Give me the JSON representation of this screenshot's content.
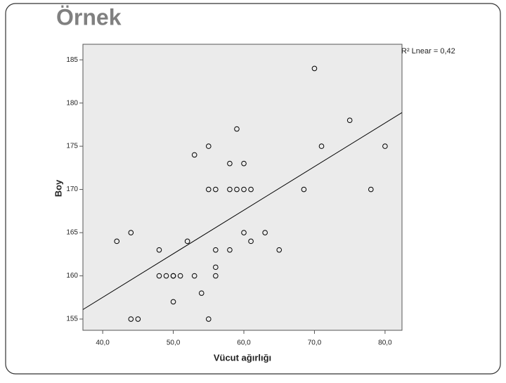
{
  "chart_data": {
    "type": "scatter",
    "title": "Örnek",
    "annotation": "R² Lnear = 0,42",
    "x_label": "Vücut ağırlığı",
    "y_label": "Boy",
    "xlim": [
      37.2,
      82.4
    ],
    "ylim": [
      153.7,
      186.8
    ],
    "xticks": [
      {
        "value": 40,
        "label": "40,0"
      },
      {
        "value": 50,
        "label": "50,0"
      },
      {
        "value": 60,
        "label": "60,0"
      },
      {
        "value": 70,
        "label": "70,0"
      },
      {
        "value": 80,
        "label": "80,0"
      }
    ],
    "yticks": [
      155,
      160,
      165,
      170,
      175,
      180,
      185
    ],
    "color": "#000000",
    "x": [
      42,
      44,
      44,
      45,
      48,
      48,
      49,
      50,
      50,
      50,
      51,
      52,
      53,
      53,
      54,
      55,
      55,
      55,
      56,
      56,
      56,
      56,
      58,
      58,
      58,
      59,
      59,
      60,
      60,
      60,
      61,
      61,
      63,
      65,
      68.5,
      70,
      71,
      75,
      78,
      80
    ],
    "values": [
      164,
      165,
      155,
      155,
      163,
      160,
      160,
      160,
      160,
      157,
      160,
      164,
      174,
      160,
      158,
      175,
      170,
      155,
      170,
      163,
      161,
      160,
      173,
      170,
      163,
      177,
      170,
      173,
      170,
      165,
      170,
      164,
      165,
      163,
      170,
      184,
      175,
      178,
      170,
      175
    ],
    "fit_line": {
      "x": [
        37.2,
        82.4
      ],
      "y": [
        156.1,
        178.9
      ],
      "color": "#000000"
    }
  }
}
